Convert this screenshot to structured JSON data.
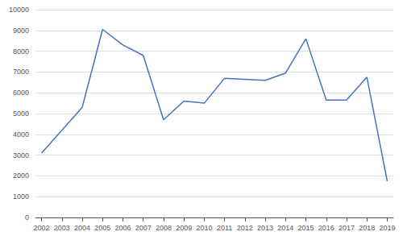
{
  "chart_data": {
    "type": "line",
    "x": [
      2002,
      2003,
      2004,
      2005,
      2006,
      2007,
      2008,
      2009,
      2010,
      2011,
      2012,
      2013,
      2014,
      2015,
      2016,
      2017,
      2018,
      2019
    ],
    "values": [
      3100,
      4200,
      5300,
      9050,
      8300,
      7800,
      4700,
      5600,
      5500,
      6700,
      6650,
      6600,
      6950,
      8600,
      5650,
      5650,
      6750,
      1750
    ],
    "color": "#4472C4",
    "xlim": [
      2001.7,
      2019.3
    ],
    "xticks": [
      2002,
      2003,
      2004,
      2005,
      2006,
      2007,
      2008,
      2009,
      2010,
      2011,
      2012,
      2013,
      2014,
      2015,
      2016,
      2017,
      2018,
      2019
    ],
    "ylim": [
      0,
      10000
    ],
    "yticks": [
      0,
      1000,
      2000,
      3000,
      4000,
      5000,
      6000,
      7000,
      8000,
      9000,
      10000
    ],
    "grid": true
  }
}
